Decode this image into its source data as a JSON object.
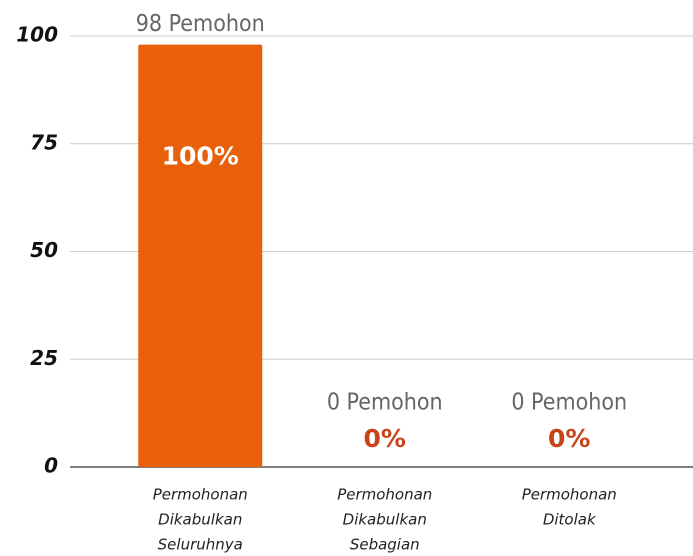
{
  "chart_data": {
    "type": "bar",
    "categories": [
      [
        "Permohonan",
        "Dikabulkan",
        "Seluruhnya"
      ],
      [
        "Permohonan",
        "Dikabulkan",
        "Sebagian"
      ],
      [
        "Permohonan",
        "Ditolak"
      ]
    ],
    "values": [
      98,
      0,
      0
    ],
    "value_labels": [
      "98 Pemohon",
      "0 Pemohon",
      "0 Pemohon"
    ],
    "percent_labels": [
      "100%",
      "0%",
      "0%"
    ],
    "color": "#e8600a",
    "percent_color": "#c8431a",
    "ylim": [
      0,
      100
    ],
    "yticks": [
      0,
      25,
      50,
      75,
      100
    ],
    "grid": true
  }
}
